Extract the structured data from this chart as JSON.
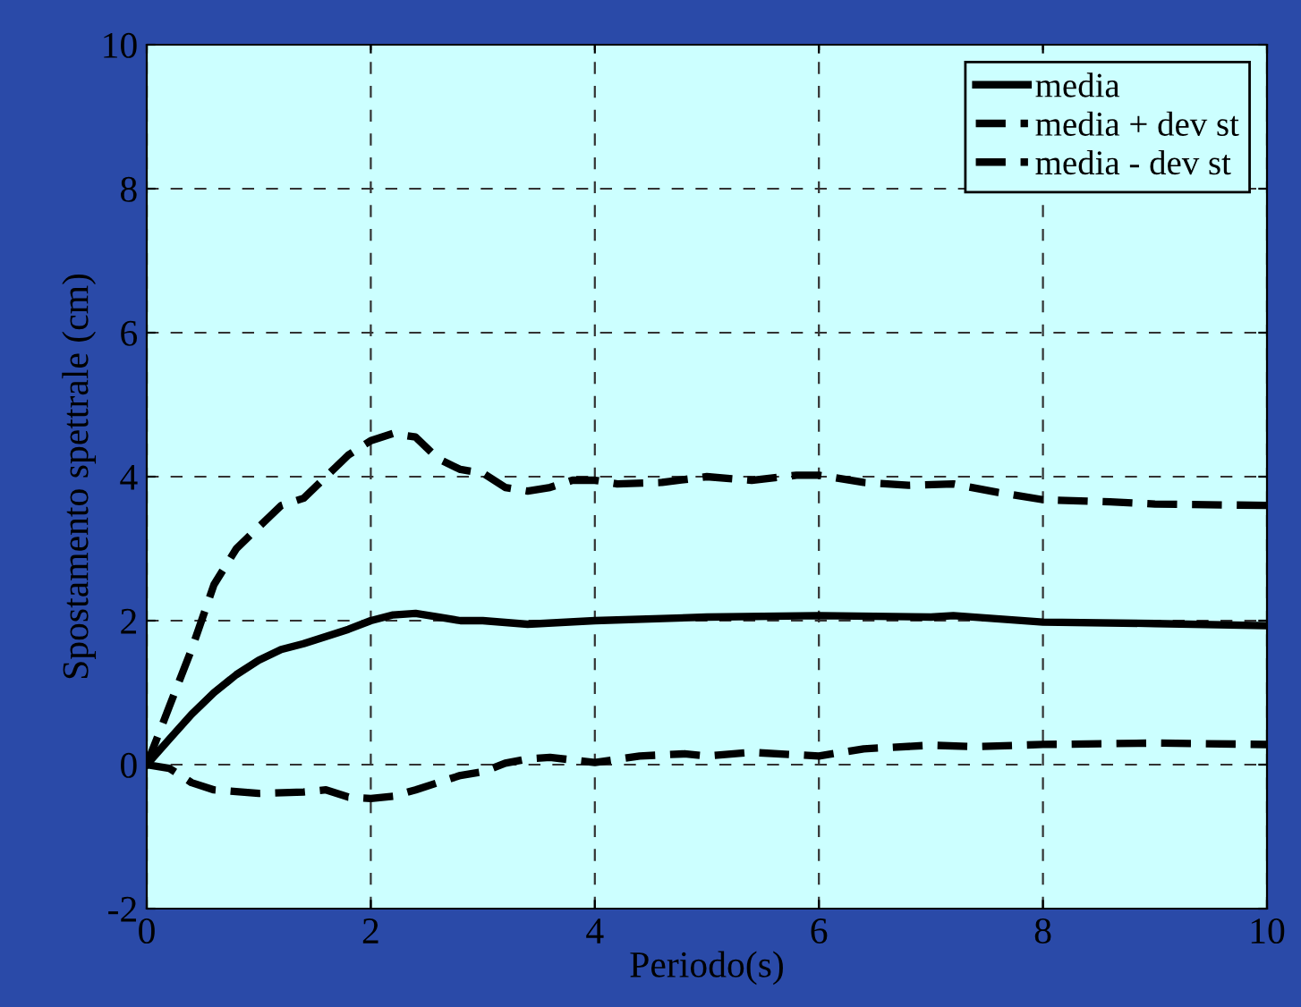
{
  "chart_data": {
    "type": "line",
    "xlabel": "Periodo(s)",
    "ylabel": "Spostamento spettrale (cm)",
    "xlim": [
      0,
      10
    ],
    "ylim": [
      -2,
      10
    ],
    "xticks": [
      0,
      2,
      4,
      6,
      8,
      10
    ],
    "yticks": [
      -2,
      0,
      2,
      4,
      6,
      8,
      10
    ],
    "grid": true,
    "legend": "top right",
    "marker": "none",
    "series": [
      {
        "name": "media",
        "color": "#000000",
        "line_style": "solid",
        "x": [
          0,
          0.2,
          0.4,
          0.6,
          0.8,
          1.0,
          1.2,
          1.4,
          1.6,
          1.8,
          2.0,
          2.2,
          2.4,
          2.6,
          2.8,
          3.0,
          3.4,
          4.0,
          5.0,
          6.0,
          7.0,
          7.2,
          8.0,
          9.0,
          10
        ],
        "values": [
          0,
          0.35,
          0.7,
          1.0,
          1.25,
          1.45,
          1.6,
          1.68,
          1.78,
          1.88,
          2.0,
          2.08,
          2.1,
          2.05,
          2.0,
          2.0,
          1.95,
          2.0,
          2.05,
          2.07,
          2.05,
          2.07,
          1.98,
          1.96,
          1.93
        ]
      },
      {
        "name": "media + dev st",
        "color": "#000000",
        "line_style": "dashed",
        "x": [
          0,
          0.2,
          0.4,
          0.6,
          0.8,
          1.0,
          1.2,
          1.4,
          1.6,
          1.8,
          2.0,
          2.2,
          2.4,
          2.6,
          2.8,
          3.0,
          3.2,
          3.4,
          3.6,
          3.8,
          4.0,
          4.2,
          4.6,
          5.0,
          5.4,
          5.8,
          6.0,
          6.4,
          6.8,
          7.2,
          7.6,
          8.0,
          8.6,
          9.0,
          10
        ],
        "values": [
          0,
          0.8,
          1.6,
          2.5,
          3.0,
          3.3,
          3.6,
          3.7,
          4.0,
          4.3,
          4.5,
          4.6,
          4.55,
          4.25,
          4.1,
          4.05,
          3.85,
          3.8,
          3.85,
          3.95,
          3.95,
          3.9,
          3.92,
          4.0,
          3.95,
          4.02,
          4.02,
          3.92,
          3.88,
          3.9,
          3.78,
          3.68,
          3.65,
          3.62,
          3.6
        ]
      },
      {
        "name": "media - dev st",
        "color": "#000000",
        "line_style": "dashed",
        "x": [
          0,
          0.2,
          0.4,
          0.6,
          1.0,
          1.4,
          1.6,
          1.8,
          2.0,
          2.2,
          2.4,
          2.8,
          3.0,
          3.2,
          3.4,
          3.6,
          4.0,
          4.4,
          4.8,
          5.0,
          5.4,
          6.0,
          6.4,
          7.0,
          7.4,
          8.0,
          9.0,
          10
        ],
        "values": [
          0,
          -0.05,
          -0.25,
          -0.35,
          -0.4,
          -0.38,
          -0.35,
          -0.45,
          -0.47,
          -0.44,
          -0.35,
          -0.15,
          -0.1,
          0.02,
          0.08,
          0.1,
          0.03,
          0.12,
          0.15,
          0.12,
          0.17,
          0.12,
          0.22,
          0.27,
          0.25,
          0.28,
          0.3,
          0.28
        ]
      }
    ]
  }
}
